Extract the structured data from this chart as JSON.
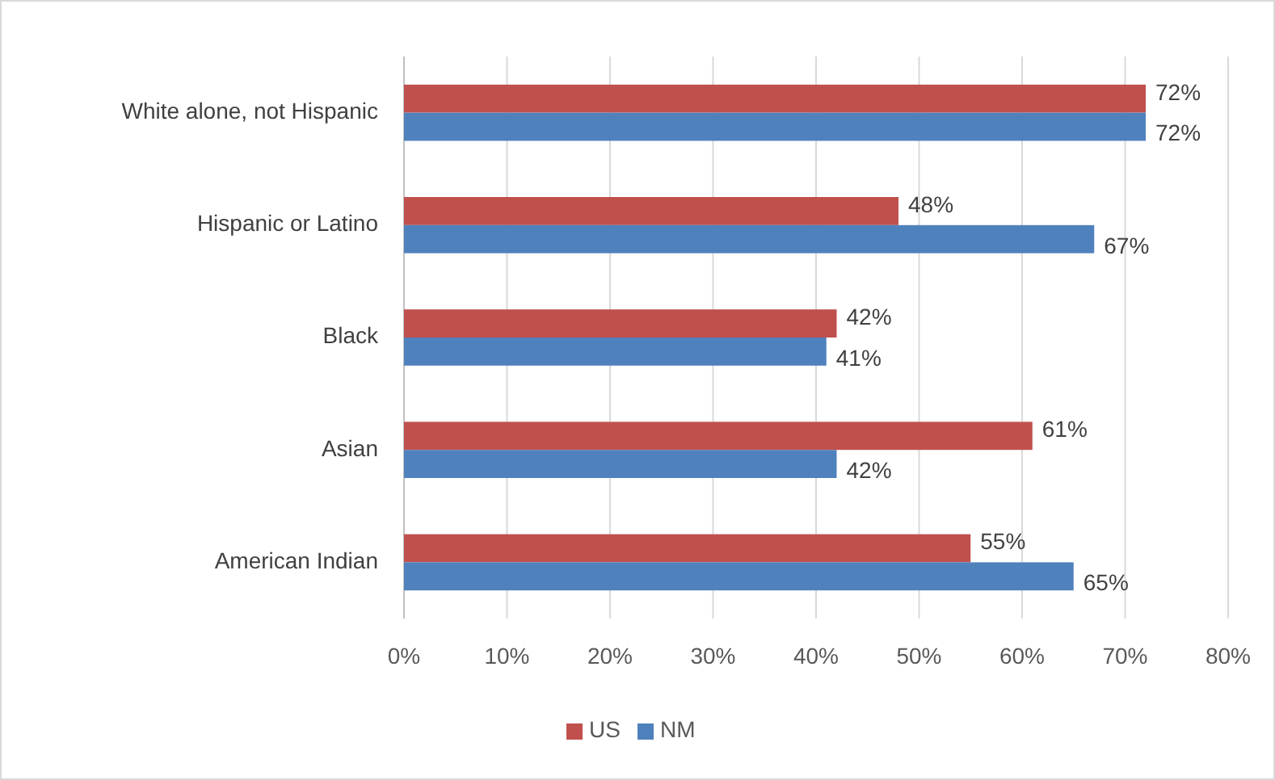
{
  "chart_data": {
    "type": "bar",
    "orientation": "horizontal",
    "categories": [
      "White alone, not Hispanic",
      "Hispanic or Latino",
      "Black",
      "Asian",
      "American Indian"
    ],
    "series": [
      {
        "name": "US",
        "color": "#c0504d",
        "values": [
          72,
          48,
          42,
          61,
          55
        ],
        "value_labels": [
          "72%",
          "48%",
          "42%",
          "61%",
          "55%"
        ]
      },
      {
        "name": "NM",
        "color": "#4f81bd",
        "values": [
          72,
          67,
          41,
          42,
          65
        ],
        "value_labels": [
          "72%",
          "67%",
          "41%",
          "42%",
          "65%"
        ]
      }
    ],
    "xlim": [
      0,
      80
    ],
    "xticks": [
      {
        "value": 0,
        "label": "0%"
      },
      {
        "value": 10,
        "label": "10%"
      },
      {
        "value": 20,
        "label": "20%"
      },
      {
        "value": 30,
        "label": "30%"
      },
      {
        "value": 40,
        "label": "40%"
      },
      {
        "value": 50,
        "label": "50%"
      },
      {
        "value": 60,
        "label": "60%"
      },
      {
        "value": 70,
        "label": "70%"
      },
      {
        "value": 80,
        "label": "80%"
      }
    ],
    "grid": "x",
    "legend": "bottom"
  }
}
